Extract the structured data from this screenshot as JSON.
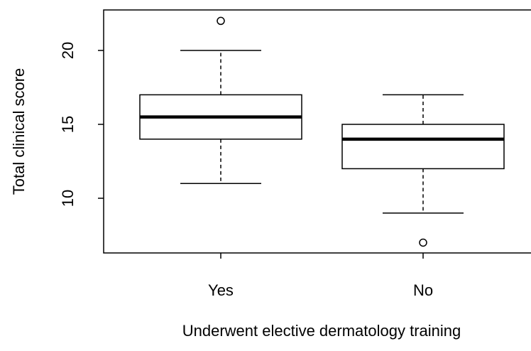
{
  "chart_data": {
    "type": "box",
    "x_label": "Underwent elective dermatology training",
    "y_label": "Total clinical score",
    "categories": [
      "Yes",
      "No"
    ],
    "boxes": [
      {
        "whisker_low": 11,
        "q1": 14,
        "median": 15.5,
        "q3": 17,
        "whisker_high": 20,
        "outliers": [
          22
        ]
      },
      {
        "whisker_low": 9,
        "q1": 12,
        "median": 14,
        "q3": 15,
        "whisker_high": 17,
        "outliers": [
          7
        ]
      }
    ],
    "ylim": [
      6.3,
      22.74
    ],
    "yticks": [
      10,
      15,
      20
    ],
    "color": "#000000"
  }
}
